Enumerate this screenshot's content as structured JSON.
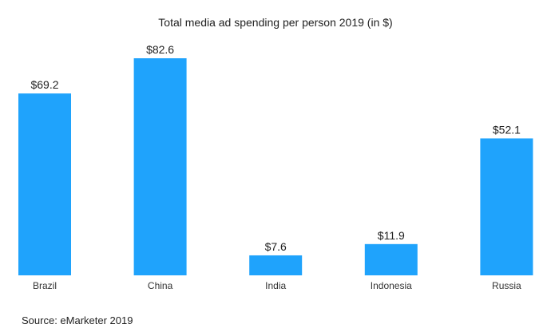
{
  "chart_data": {
    "type": "bar",
    "title": "Total media ad spending per person 2019 (in $)",
    "categories": [
      "Brazil",
      "China",
      "India",
      "Indonesia",
      "Russia"
    ],
    "values": [
      69.2,
      82.6,
      7.6,
      11.9,
      52.1
    ],
    "data_labels": [
      "$69.2",
      "$82.6",
      "$7.6",
      "$11.9",
      "$52.1"
    ],
    "xlabel": "",
    "ylabel": "",
    "ylim": [
      0,
      82.6
    ],
    "grid": false,
    "legend": "none",
    "bar_color": "#1fa3fc",
    "source": "Source: eMarketer 2019"
  }
}
